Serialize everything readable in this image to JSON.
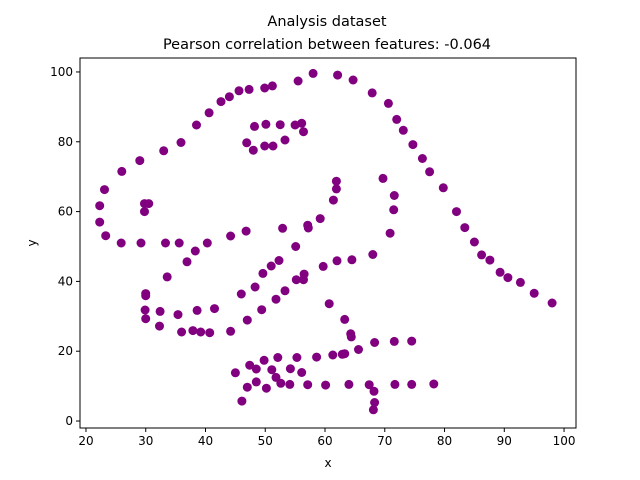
{
  "chart_data": {
    "type": "scatter",
    "title": "Analysis dataset",
    "subtitle": "Pearson correlation between features: -0.064",
    "xlabel": "x",
    "ylabel": "y",
    "xlim": [
      19,
      102
    ],
    "ylim": [
      -2,
      104
    ],
    "xticks": [
      20,
      30,
      40,
      50,
      60,
      70,
      80,
      90,
      100
    ],
    "yticks": [
      0,
      20,
      40,
      60,
      80,
      100
    ],
    "grid": false,
    "marker_color": "#800080",
    "points": [
      [
        22.3,
        61.7
      ],
      [
        22.3,
        57.0
      ],
      [
        23.1,
        66.3
      ],
      [
        23.3,
        53.1
      ],
      [
        25.9,
        51.0
      ],
      [
        26.0,
        71.5
      ],
      [
        29.0,
        74.6
      ],
      [
        29.2,
        51.0
      ],
      [
        29.8,
        62.3
      ],
      [
        29.8,
        60.0
      ],
      [
        30.5,
        62.3
      ],
      [
        33.0,
        77.4
      ],
      [
        33.3,
        51.0
      ],
      [
        35.6,
        51.0
      ],
      [
        35.9,
        79.8
      ],
      [
        36.9,
        45.6
      ],
      [
        38.3,
        48.7
      ],
      [
        38.5,
        84.8
      ],
      [
        40.3,
        51.0
      ],
      [
        40.6,
        88.3
      ],
      [
        42.6,
        91.5
      ],
      [
        44.0,
        92.9
      ],
      [
        44.2,
        53.0
      ],
      [
        45.6,
        94.6
      ],
      [
        46.8,
        54.4
      ],
      [
        46.9,
        79.7
      ],
      [
        47.3,
        95.0
      ],
      [
        48.2,
        84.4
      ],
      [
        48.0,
        77.6
      ],
      [
        49.9,
        95.4
      ],
      [
        50.1,
        85.0
      ],
      [
        49.9,
        78.8
      ],
      [
        51.2,
        96.0
      ],
      [
        51.3,
        78.8
      ],
      [
        52.9,
        55.2
      ],
      [
        52.5,
        84.9
      ],
      [
        53.3,
        80.5
      ],
      [
        55.0,
        84.8
      ],
      [
        55.5,
        97.4
      ],
      [
        56.1,
        85.3
      ],
      [
        56.4,
        82.9
      ],
      [
        57.1,
        56.1
      ],
      [
        58.0,
        99.6
      ],
      [
        57.2,
        55.3
      ],
      [
        59.2,
        58.0
      ],
      [
        61.4,
        63.3
      ],
      [
        61.9,
        66.5
      ],
      [
        61.9,
        68.7
      ],
      [
        62.1,
        99.1
      ],
      [
        64.7,
        97.7
      ],
      [
        67.9,
        94.0
      ],
      [
        70.6,
        91.0
      ],
      [
        72.0,
        86.4
      ],
      [
        73.1,
        83.3
      ],
      [
        74.7,
        79.2
      ],
      [
        76.3,
        75.2
      ],
      [
        77.5,
        71.4
      ],
      [
        79.8,
        66.8
      ],
      [
        82.0,
        60.0
      ],
      [
        83.4,
        55.4
      ],
      [
        85.0,
        51.3
      ],
      [
        86.2,
        47.6
      ],
      [
        87.6,
        46.1
      ],
      [
        89.3,
        42.6
      ],
      [
        90.6,
        41.1
      ],
      [
        92.7,
        39.7
      ],
      [
        95.0,
        36.6
      ],
      [
        98.0,
        33.8
      ],
      [
        69.7,
        69.5
      ],
      [
        71.6,
        64.6
      ],
      [
        71.5,
        60.5
      ],
      [
        70.9,
        53.8
      ],
      [
        68.0,
        47.7
      ],
      [
        64.5,
        46.2
      ],
      [
        62.0,
        45.9
      ],
      [
        59.7,
        44.3
      ],
      [
        56.4,
        40.5
      ],
      [
        56.5,
        42.1
      ],
      [
        55.2,
        40.5
      ],
      [
        53.3,
        37.3
      ],
      [
        51.8,
        34.9
      ],
      [
        49.4,
        31.9
      ],
      [
        47.0,
        28.9
      ],
      [
        46.0,
        36.4
      ],
      [
        48.3,
        38.4
      ],
      [
        49.6,
        42.3
      ],
      [
        51.0,
        44.4
      ],
      [
        52.3,
        46.0
      ],
      [
        55.1,
        50.0
      ],
      [
        41.5,
        32.2
      ],
      [
        44.2,
        25.7
      ],
      [
        40.7,
        25.3
      ],
      [
        39.2,
        25.5
      ],
      [
        37.9,
        25.9
      ],
      [
        36.0,
        25.5
      ],
      [
        35.4,
        30.5
      ],
      [
        32.4,
        31.4
      ],
      [
        29.9,
        31.8
      ],
      [
        30.0,
        29.3
      ],
      [
        32.3,
        27.2
      ],
      [
        30.0,
        35.9
      ],
      [
        30.0,
        36.5
      ],
      [
        33.6,
        41.3
      ],
      [
        38.6,
        31.7
      ],
      [
        60.7,
        33.6
      ],
      [
        63.3,
        29.1
      ],
      [
        64.3,
        25.0
      ],
      [
        64.4,
        24.1
      ],
      [
        45.0,
        13.8
      ],
      [
        46.1,
        5.7
      ],
      [
        47.0,
        9.7
      ],
      [
        47.4,
        16.0
      ],
      [
        48.5,
        14.9
      ],
      [
        48.5,
        11.2
      ],
      [
        49.8,
        17.4
      ],
      [
        50.2,
        9.4
      ],
      [
        51.1,
        14.7
      ],
      [
        52.1,
        18.2
      ],
      [
        52.6,
        10.8
      ],
      [
        51.8,
        12.5
      ],
      [
        54.1,
        10.5
      ],
      [
        54.2,
        15.0
      ],
      [
        55.3,
        18.2
      ],
      [
        56.1,
        13.9
      ],
      [
        57.1,
        10.4
      ],
      [
        58.6,
        18.3
      ],
      [
        60.1,
        10.3
      ],
      [
        61.3,
        18.9
      ],
      [
        62.9,
        19.1
      ],
      [
        64.0,
        10.5
      ],
      [
        65.6,
        20.5
      ],
      [
        67.4,
        10.4
      ],
      [
        68.2,
        8.5
      ],
      [
        68.1,
        3.2
      ],
      [
        68.3,
        5.3
      ],
      [
        68.3,
        22.5
      ],
      [
        71.6,
        22.8
      ],
      [
        71.7,
        10.5
      ],
      [
        74.5,
        22.9
      ],
      [
        74.5,
        10.5
      ],
      [
        78.2,
        10.6
      ],
      [
        63.3,
        19.3
      ]
    ]
  }
}
